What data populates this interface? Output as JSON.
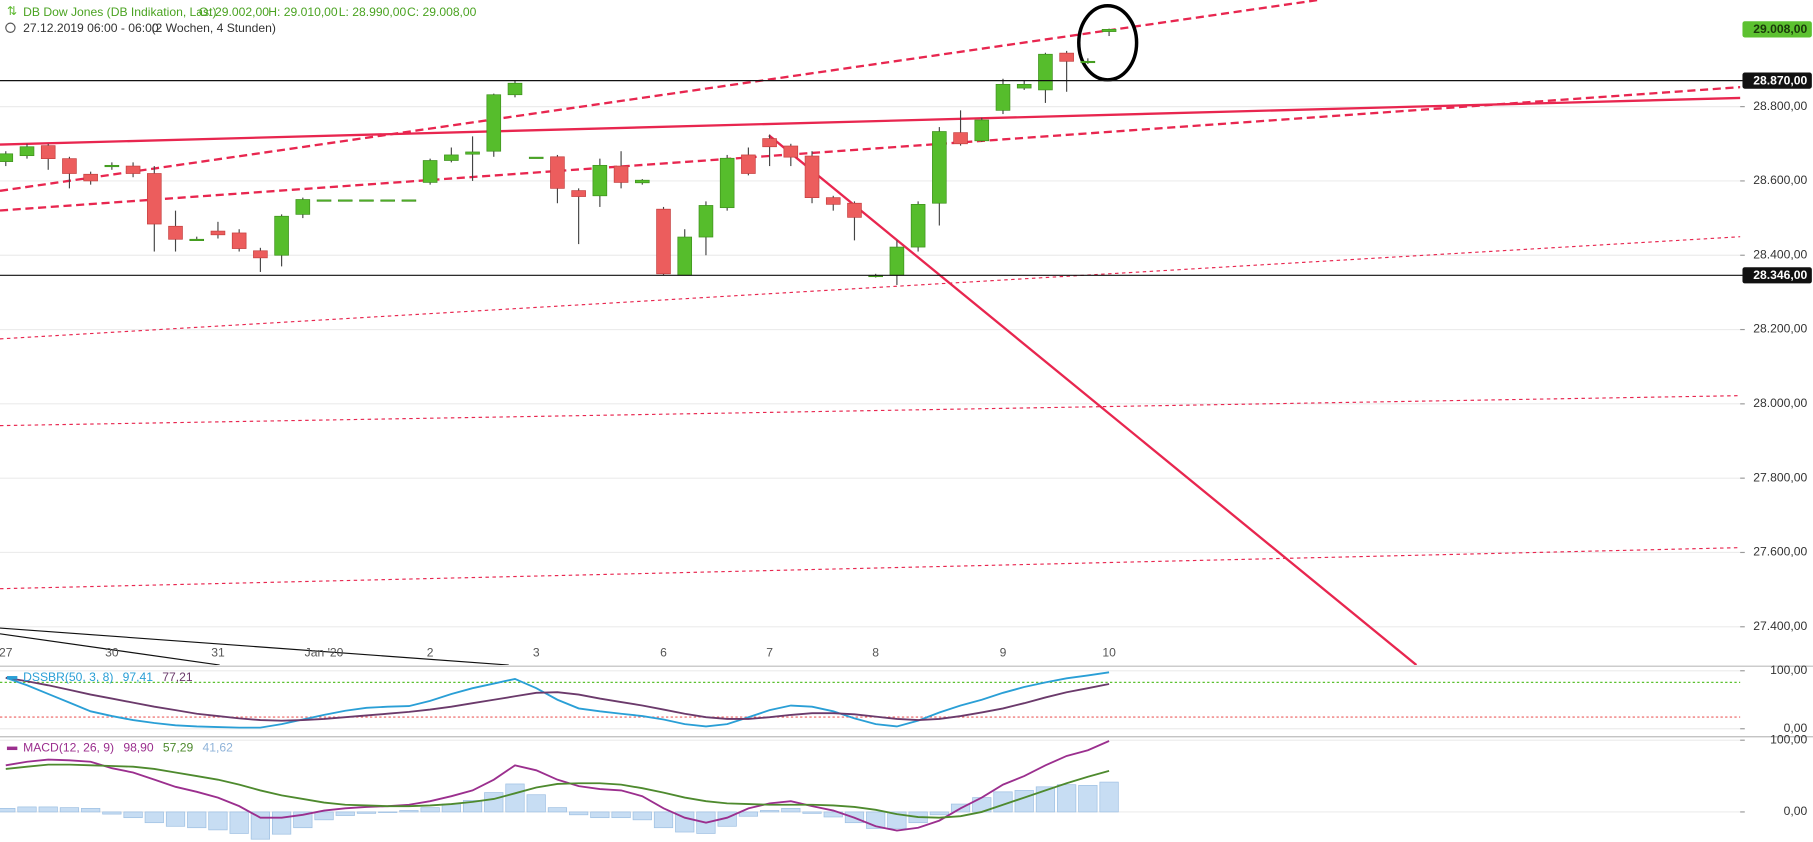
{
  "chart_data": [
    {
      "type": "candlestick",
      "title": "DB Dow Jones (DB Indikation, Last)",
      "ohlc": [
        "O: 29.002,00",
        "H: 29.010,00",
        "L: 28.990,00",
        "C: 29.008,00"
      ],
      "subtitle": "27.12.2019 06:00 - 06:00",
      "period": "(2 Wochen, 4 Stunden)",
      "categories": [
        "27",
        null,
        null,
        null,
        null,
        "30",
        null,
        null,
        null,
        null,
        "31",
        null,
        null,
        null,
        null,
        "Jan '20",
        null,
        null,
        null,
        null,
        "2",
        null,
        null,
        null,
        null,
        "3",
        null,
        null,
        null,
        null,
        null,
        "6",
        null,
        null,
        null,
        null,
        "7",
        null,
        null,
        null,
        null,
        "8",
        null,
        null,
        null,
        null,
        null,
        "9",
        null,
        null,
        null,
        null,
        "10"
      ],
      "open": [
        28652,
        28668,
        28695,
        28660,
        28618,
        28642,
        28640,
        28620,
        28478,
        28443,
        28465,
        28460,
        28412,
        28400,
        28510,
        28549,
        28549,
        28549,
        28549,
        28549,
        28596,
        28655,
        28672,
        28680,
        28832,
        28664,
        28665,
        28574,
        28560,
        28640,
        28595,
        28524,
        28346,
        28449,
        28528,
        28670,
        28714,
        28694,
        28667,
        28555,
        28540,
        28346,
        28346,
        28422,
        28540,
        28730,
        28708,
        28790,
        28850,
        28845,
        28944,
        28922,
        29002
      ],
      "high": [
        28680,
        28700,
        28700,
        28665,
        28625,
        28650,
        28650,
        28640,
        28520,
        28450,
        28490,
        28470,
        28420,
        28510,
        28555,
        28549,
        28549,
        28549,
        28549,
        28549,
        28660,
        28690,
        28720,
        28835,
        28870,
        28664,
        28670,
        28580,
        28660,
        28680,
        28605,
        28530,
        28470,
        28545,
        28670,
        28690,
        28725,
        28700,
        28680,
        28560,
        28545,
        28350,
        28440,
        28545,
        28745,
        28790,
        28770,
        28875,
        28870,
        28945,
        28950,
        28930,
        29010
      ],
      "low": [
        28640,
        28660,
        28630,
        28580,
        28590,
        28630,
        28610,
        28410,
        28410,
        28440,
        28445,
        28410,
        28355,
        28370,
        28500,
        28549,
        28549,
        28549,
        28549,
        28549,
        28590,
        28650,
        28600,
        28665,
        28825,
        28664,
        28540,
        28430,
        28530,
        28580,
        28590,
        28346,
        28346,
        28400,
        28520,
        28615,
        28640,
        28640,
        28540,
        28520,
        28440,
        28340,
        28320,
        28410,
        28480,
        28695,
        28705,
        28780,
        28845,
        28810,
        28840,
        28915,
        28990
      ],
      "close": [
        28673,
        28692,
        28660,
        28620,
        28600,
        28642,
        28620,
        28484,
        28443,
        28443,
        28455,
        28418,
        28393,
        28505,
        28550,
        28549,
        28549,
        28549,
        28549,
        28549,
        28655,
        28670,
        28678,
        28832,
        28863,
        28664,
        28580,
        28558,
        28642,
        28596,
        28602,
        28350,
        28449,
        28534,
        28661,
        28620,
        28692,
        28664,
        28555,
        28537,
        28502,
        28346,
        28422,
        28537,
        28733,
        28700,
        28764,
        28860,
        28860,
        28941,
        28922,
        28922,
        29008
      ],
      "up_color": "#56bd2c",
      "down_color": "#ec5d5d",
      "ylim": [
        27297,
        29087
      ],
      "yticks": [
        {
          "value": 28800,
          "label": "28.800,00"
        },
        {
          "value": 28600,
          "label": "28.600,00"
        },
        {
          "value": 28400,
          "label": "28.400,00"
        },
        {
          "value": 28200,
          "label": "28.200,00"
        },
        {
          "value": 28000,
          "label": "28.000,00"
        },
        {
          "value": 27800,
          "label": "27.800,00"
        },
        {
          "value": 27600,
          "label": "27.600,00"
        },
        {
          "value": 27400,
          "label": "27.400,00"
        }
      ],
      "price_markers": [
        {
          "value": 29008,
          "label": "29.008,00",
          "color": "#5cc130",
          "line": false
        },
        {
          "value": 28870,
          "label": "28.870,00",
          "color": "#111111",
          "line": true
        },
        {
          "value": 28346,
          "label": "28.346,00",
          "color": "#111111",
          "line": true
        }
      ],
      "grid": true
    },
    {
      "type": "line",
      "title": "DSSBR(50, 3, 8)",
      "title_color": "#2a9fd6",
      "series": [
        {
          "name": "DSS",
          "color": "#2a9fd6",
          "last_label": "97,41",
          "values": [
            88,
            75,
            60,
            45,
            30,
            22,
            15,
            10,
            6,
            4,
            3,
            2,
            2,
            8,
            16,
            24,
            31,
            36,
            38,
            39,
            48,
            60,
            70,
            78,
            86,
            70,
            50,
            35,
            30,
            26,
            22,
            16,
            8,
            4,
            8,
            20,
            32,
            40,
            38,
            30,
            18,
            8,
            4,
            14,
            28,
            40,
            50,
            62,
            72,
            80,
            87,
            92,
            97.41
          ]
        },
        {
          "name": "Signal",
          "color": "#6b3a6b",
          "last_label": "77,21",
          "values": [
            88,
            82,
            75,
            67,
            59,
            52,
            45,
            38,
            32,
            26,
            22,
            18,
            15,
            14,
            15,
            17,
            20,
            23,
            26,
            29,
            33,
            38,
            44,
            50,
            56,
            62,
            63,
            59,
            52,
            46,
            40,
            33,
            26,
            20,
            17,
            17,
            20,
            24,
            27,
            27,
            25,
            21,
            17,
            15,
            17,
            22,
            28,
            35,
            44,
            54,
            63,
            70,
            77.21
          ]
        }
      ],
      "ylim": [
        -11.8,
        105.9
      ],
      "yticks": [
        {
          "value": 100,
          "label": "100,00"
        },
        {
          "value": 0,
          "label": "0,00"
        }
      ],
      "grid": true
    },
    {
      "type": "line",
      "title": "MACD(12, 26, 9)",
      "title_color": "#9b2f8e",
      "series": [
        {
          "name": "MACD",
          "color": "#9b2f8e",
          "last_label": "98,90",
          "values": [
            65,
            70,
            73,
            72,
            70,
            61,
            55,
            45,
            35,
            28,
            20,
            8,
            -8,
            -8,
            -4,
            2,
            5,
            7,
            8,
            10,
            15,
            22,
            30,
            45,
            65,
            58,
            45,
            36,
            32,
            30,
            22,
            5,
            -8,
            -15,
            -8,
            5,
            12,
            15,
            8,
            2,
            -8,
            -20,
            -26,
            -22,
            -12,
            5,
            20,
            38,
            50,
            65,
            78,
            86,
            98.9
          ]
        },
        {
          "name": "Signal",
          "color": "#4e8a2e",
          "last_label": "57,29",
          "values": [
            60,
            63,
            66,
            66,
            65,
            64,
            63,
            60,
            55,
            50,
            45,
            38,
            30,
            23,
            18,
            13,
            10,
            9,
            8,
            8,
            9,
            11,
            14,
            18,
            26,
            34,
            39,
            40,
            40,
            38,
            33,
            27,
            20,
            15,
            12,
            11,
            10,
            10,
            10,
            9,
            7,
            3,
            -3,
            -7,
            -8,
            -6,
            0,
            10,
            20,
            30,
            40,
            49,
            57.29
          ]
        },
        {
          "name": "Histogramm",
          "color": "#c7ddf3",
          "style": "bar",
          "last_label": "41,62",
          "values": [
            5,
            7,
            7,
            6,
            5,
            -3,
            -8,
            -15,
            -20,
            -22,
            -25,
            -30,
            -38,
            -31,
            -22,
            -11,
            -5,
            -2,
            0,
            2,
            6,
            11,
            16,
            27,
            39,
            24,
            6,
            -4,
            -8,
            -8,
            -11,
            -22,
            -28,
            -30,
            -20,
            -6,
            2,
            5,
            -2,
            -7,
            -15,
            -23,
            -23,
            -15,
            -4,
            11,
            20,
            28,
            30,
            35,
            38,
            37,
            41.62
          ]
        }
      ],
      "ylim": [
        -41.9,
        103.2
      ],
      "yticks": [
        {
          "value": 100,
          "label": "100,00"
        },
        {
          "value": 0,
          "label": "0,00"
        }
      ],
      "grid": true
    }
  ]
}
